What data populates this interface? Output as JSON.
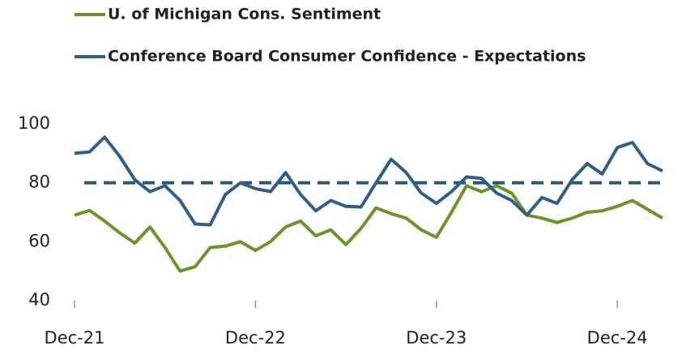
{
  "chart_data": {
    "type": "line",
    "categories": [
      "Dec-21",
      null,
      null,
      null,
      null,
      null,
      null,
      null,
      null,
      null,
      null,
      null,
      "Dec-22",
      null,
      null,
      null,
      null,
      null,
      null,
      null,
      null,
      null,
      null,
      null,
      "Dec-23",
      null,
      null,
      null,
      null,
      null,
      null,
      null,
      null,
      null,
      null,
      null,
      "Dec-24",
      null,
      null,
      null
    ],
    "series": [
      {
        "name": "U. of Michigan Cons. Sentiment",
        "color": "#6b9526",
        "values": [
          69,
          70.6,
          67,
          63,
          59.5,
          65,
          58,
          50,
          51.5,
          58,
          58.5,
          60,
          57,
          60,
          65,
          67,
          62,
          64,
          59,
          64.5,
          71.5,
          69.5,
          68,
          64,
          61.5,
          70,
          79,
          77,
          79,
          76.5,
          69,
          68,
          66.5,
          68,
          70,
          70.5,
          72,
          74,
          71,
          68
        ]
      },
      {
        "name": "Conference Board Consumer Confidence - Expectations",
        "color": "#2e5f8c",
        "values": [
          90,
          90.5,
          95.5,
          89,
          81,
          77,
          79,
          74,
          66,
          65.7,
          76,
          80,
          78,
          77,
          83.5,
          76,
          70.5,
          74,
          72,
          71.8,
          80,
          88,
          83.5,
          76.5,
          73,
          77,
          82,
          81.5,
          76.5,
          74,
          69,
          75,
          73,
          81,
          86.5,
          83,
          92,
          93.7,
          86.5,
          84
        ]
      }
    ],
    "reference_line": 80,
    "reference_color": "#2a5675",
    "ylim": [
      40,
      100
    ],
    "yticks": [
      40,
      60,
      80,
      100
    ]
  }
}
